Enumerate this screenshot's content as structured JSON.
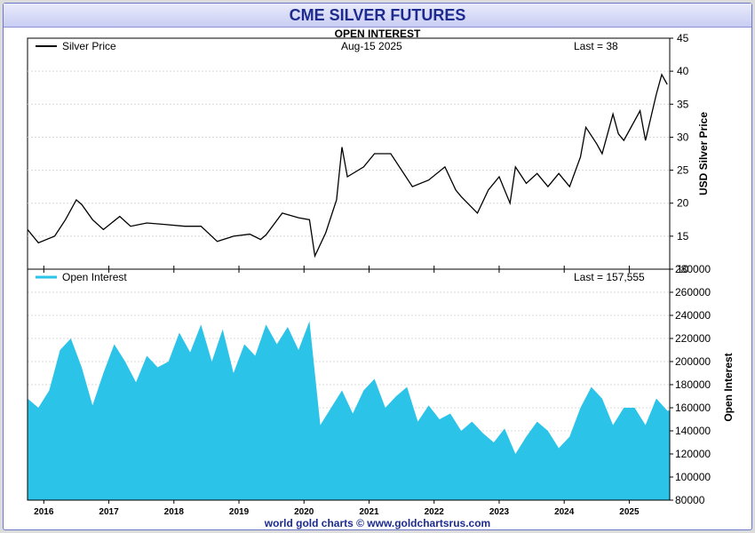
{
  "title": "CME SILVER FUTURES",
  "subtitle": "OPEN INTEREST",
  "footer": "world gold charts © www.goldchartsrus.com",
  "colors": {
    "price_line": "#000000",
    "oi_fill": "#2bc3e8",
    "title": "#1d2b8f",
    "grid": "#d8d8d8"
  },
  "chart_data": [
    {
      "type": "line",
      "legend": "Silver Price",
      "date_label": "Aug-15  2025",
      "last_label": "Last = 38",
      "ylabel": "USD Silver Price",
      "ylim": [
        10,
        45
      ],
      "yticks": [
        10,
        15,
        20,
        25,
        30,
        35,
        40,
        45
      ],
      "xlim": [
        "2015-10-01",
        "2025-08-15"
      ],
      "x": [
        "2015-10",
        "2015-12",
        "2016-03",
        "2016-05",
        "2016-07",
        "2016-08",
        "2016-10",
        "2016-12",
        "2017-03",
        "2017-05",
        "2017-08",
        "2017-11",
        "2018-03",
        "2018-06",
        "2018-09",
        "2018-12",
        "2019-03",
        "2019-05",
        "2019-06",
        "2019-09",
        "2019-12",
        "2020-02",
        "2020-03",
        "2020-05",
        "2020-07",
        "2020-08",
        "2020-09",
        "2020-12",
        "2021-02",
        "2021-05",
        "2021-09",
        "2021-12",
        "2022-03",
        "2022-05",
        "2022-06",
        "2022-09",
        "2022-11",
        "2023-01",
        "2023-03",
        "2023-04",
        "2023-06",
        "2023-08",
        "2023-10",
        "2023-12",
        "2024-02",
        "2024-04",
        "2024-05",
        "2024-07",
        "2024-08",
        "2024-10",
        "2024-11",
        "2024-12",
        "2025-01",
        "2025-03",
        "2025-04",
        "2025-06",
        "2025-07",
        "2025-08"
      ],
      "y": [
        16.0,
        14.0,
        15.0,
        17.5,
        20.5,
        19.8,
        17.5,
        16.0,
        18.0,
        16.5,
        17.0,
        16.8,
        16.5,
        16.5,
        14.2,
        15.0,
        15.3,
        14.5,
        15.2,
        18.5,
        17.8,
        17.5,
        12.0,
        15.5,
        20.5,
        28.5,
        24.0,
        25.5,
        27.5,
        27.5,
        22.5,
        23.5,
        25.5,
        22.0,
        21.0,
        18.5,
        22.0,
        24.0,
        20.0,
        25.5,
        23.0,
        24.5,
        22.5,
        24.5,
        22.5,
        27.0,
        31.5,
        29.0,
        27.5,
        33.5,
        30.5,
        29.5,
        31.0,
        34.0,
        29.5,
        36.5,
        39.5,
        38.0
      ]
    },
    {
      "type": "area",
      "legend": "Open Interest",
      "last_label": "Last = 157,555",
      "ylabel": "Open Interest",
      "ylim": [
        80000,
        280000
      ],
      "yticks": [
        80000,
        100000,
        120000,
        140000,
        160000,
        180000,
        200000,
        220000,
        240000,
        260000,
        280000
      ],
      "xlim": [
        "2015-10-01",
        "2025-08-15"
      ],
      "x": [
        "2015-10",
        "2015-12",
        "2016-02",
        "2016-04",
        "2016-06",
        "2016-08",
        "2016-10",
        "2016-12",
        "2017-02",
        "2017-04",
        "2017-06",
        "2017-08",
        "2017-10",
        "2017-12",
        "2018-02",
        "2018-04",
        "2018-06",
        "2018-08",
        "2018-10",
        "2018-12",
        "2019-02",
        "2019-04",
        "2019-06",
        "2019-08",
        "2019-10",
        "2019-12",
        "2020-02",
        "2020-04",
        "2020-06",
        "2020-08",
        "2020-10",
        "2020-12",
        "2021-02",
        "2021-04",
        "2021-06",
        "2021-08",
        "2021-10",
        "2021-12",
        "2022-02",
        "2022-04",
        "2022-06",
        "2022-08",
        "2022-10",
        "2022-12",
        "2023-02",
        "2023-04",
        "2023-06",
        "2023-08",
        "2023-10",
        "2023-12",
        "2024-02",
        "2024-04",
        "2024-06",
        "2024-08",
        "2024-10",
        "2024-12",
        "2025-02",
        "2025-04",
        "2025-06",
        "2025-08"
      ],
      "y": [
        168000,
        160000,
        175000,
        210000,
        220000,
        195000,
        162000,
        190000,
        215000,
        200000,
        182000,
        205000,
        195000,
        200000,
        225000,
        208000,
        232000,
        200000,
        228000,
        190000,
        215000,
        205000,
        232000,
        215000,
        230000,
        210000,
        235000,
        145000,
        160000,
        175000,
        155000,
        175000,
        185000,
        160000,
        170000,
        178000,
        148000,
        162000,
        150000,
        155000,
        140000,
        148000,
        138000,
        130000,
        142000,
        120000,
        135000,
        148000,
        140000,
        125000,
        135000,
        160000,
        178000,
        168000,
        145000,
        160000,
        160000,
        145000,
        168000,
        157555
      ]
    }
  ],
  "x_axis_ticks": [
    "2016",
    "2017",
    "2018",
    "2019",
    "2020",
    "2021",
    "2022",
    "2023",
    "2024",
    "2025"
  ]
}
